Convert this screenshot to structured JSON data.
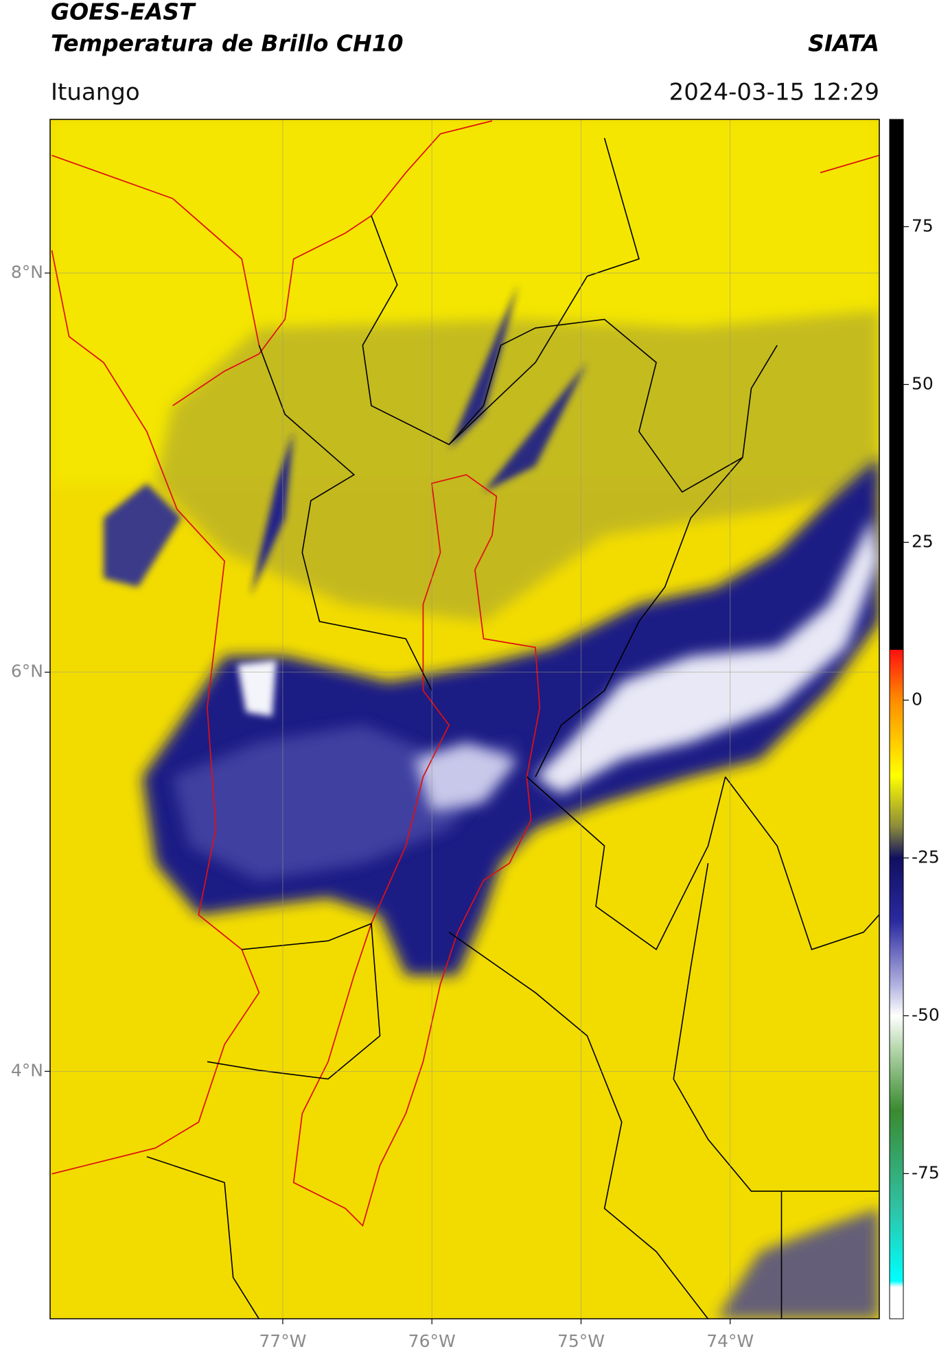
{
  "chart_data": {
    "type": "map",
    "title": "GOES-EAST",
    "subtitle": "Temperatura de Brillo CH10",
    "credit": "SIATA",
    "location": "Ituango",
    "timestamp": "2024-03-15 12:29",
    "xlim": [
      -78.56,
      -73.0
    ],
    "ylim": [
      2.76,
      8.77
    ],
    "xticks": [
      {
        "value": -77,
        "label": "77°W"
      },
      {
        "value": -76,
        "label": "76°W"
      },
      {
        "value": -75,
        "label": "75°W"
      },
      {
        "value": -74,
        "label": "74°W"
      }
    ],
    "yticks": [
      {
        "value": 4,
        "label": "4°N"
      },
      {
        "value": 6,
        "label": "6°N"
      },
      {
        "value": 8,
        "label": "8°N"
      }
    ],
    "grid": true,
    "colorbar": {
      "lim": [
        -98,
        92
      ],
      "ticks": [
        -75,
        -50,
        -25,
        0,
        25,
        50,
        75
      ],
      "stops": [
        {
          "value": 92,
          "color": "#000000"
        },
        {
          "value": 8,
          "color": "#000000"
        },
        {
          "value": 8,
          "color": "#ff1010"
        },
        {
          "value": 0,
          "color": "#ff8c00"
        },
        {
          "value": -12,
          "color": "#ffff00"
        },
        {
          "value": -20,
          "color": "#8c8c3a"
        },
        {
          "value": -25,
          "color": "#101060"
        },
        {
          "value": -35,
          "color": "#2a2aa0"
        },
        {
          "value": -45,
          "color": "#b0b0e0"
        },
        {
          "value": -50,
          "color": "#ffffff"
        },
        {
          "value": -55,
          "color": "#b8d8b0"
        },
        {
          "value": -65,
          "color": "#3a8a30"
        },
        {
          "value": -80,
          "color": "#30c0a0"
        },
        {
          "value": -92,
          "color": "#00ffff"
        },
        {
          "value": -93,
          "color": "#ffffff"
        },
        {
          "value": -98,
          "color": "#ffffff"
        }
      ]
    }
  }
}
